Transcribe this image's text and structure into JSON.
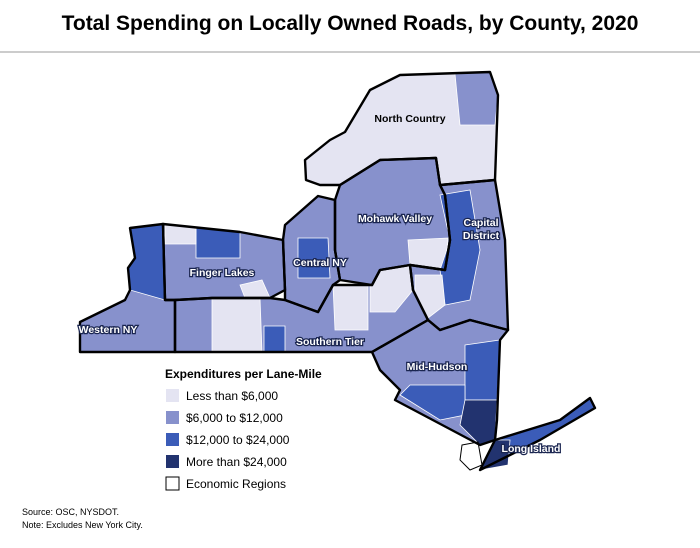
{
  "title": "Total Spending on Locally Owned Roads, by County, 2020",
  "regions": [
    {
      "label": "North Country"
    },
    {
      "label": "Mohawk Valley"
    },
    {
      "label": [
        "Capital",
        "District"
      ]
    },
    {
      "label": "Finger Lakes"
    },
    {
      "label": "Central NY"
    },
    {
      "label": "Western NY"
    },
    {
      "label": "Southern Tier"
    },
    {
      "label": "Mid-Hudson"
    },
    {
      "label": "Long Island"
    }
  ],
  "legend": {
    "title": "Expenditures per Lane-Mile",
    "items": [
      {
        "label": "Less than $6,000",
        "color": "#e4e4f2"
      },
      {
        "label": "$6,000 to $12,000",
        "color": "#8791cc"
      },
      {
        "label": "$12,000 to $24,000",
        "color": "#3b5cb8"
      },
      {
        "label": "More than $24,000",
        "color": "#22336f"
      },
      {
        "label": "Economic Regions",
        "color": "#ffffff"
      }
    ]
  },
  "source": "Source: OSC, NYSDOT.",
  "note": "Note: Excludes New York City."
}
